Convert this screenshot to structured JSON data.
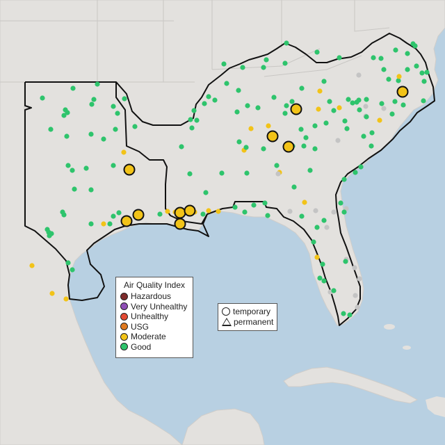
{
  "legend": {
    "title": "Air Quality Index",
    "categories": [
      {
        "label": "Hazardous",
        "color": "#7e2b2b"
      },
      {
        "label": "Very Unhealthy",
        "color": "#8f4fb7"
      },
      {
        "label": "Unhealthy",
        "color": "#e34a33"
      },
      {
        "label": "USG",
        "color": "#e07a1f"
      },
      {
        "label": "Moderate",
        "color": "#f2c318"
      },
      {
        "label": "Good",
        "color": "#2ec46c"
      }
    ]
  },
  "site_types": [
    {
      "label": "temporary",
      "shape": "circle"
    },
    {
      "label": "permanent",
      "shape": "triangle"
    }
  ],
  "colors": {
    "water": "#b8d0e2",
    "land": "#e3e1de",
    "outline": "#111111",
    "no_data": "#c4c4c4"
  }
}
